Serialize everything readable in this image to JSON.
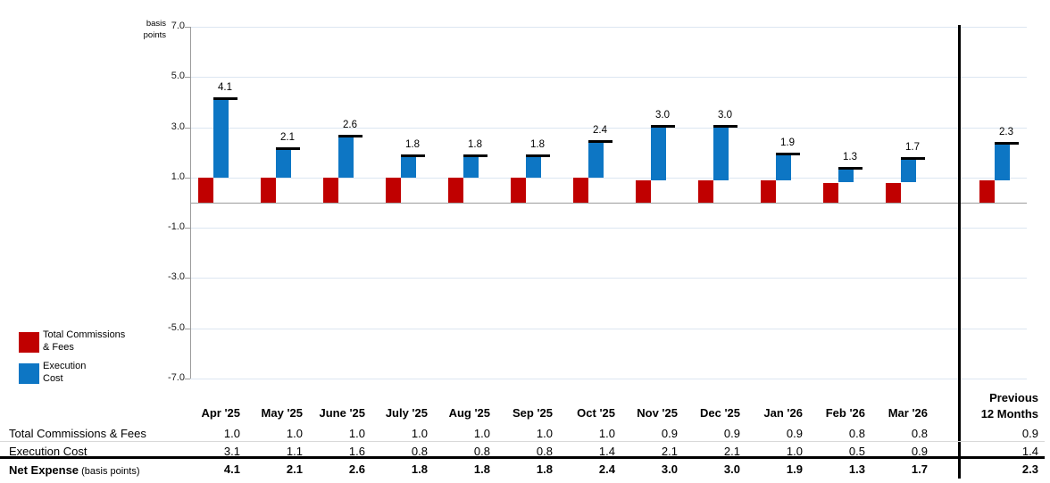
{
  "chart": {
    "axis_title_line1": "basis",
    "axis_title_line2": "points",
    "y_tick_labels": [
      "7.0",
      "5.0",
      "3.0",
      "1.0",
      "-1.0",
      "-3.0",
      "-5.0",
      "-7.0"
    ],
    "y_tick_values": [
      7,
      5,
      3,
      1,
      -1,
      -3,
      -5,
      -7
    ]
  },
  "chart_data": {
    "type": "bar",
    "subtype": "stacked-column-with-total-marker",
    "title": "",
    "ylabel": "basis points",
    "ylim": [
      -7.0,
      7.0
    ],
    "ytick_interval": 2.0,
    "grid": true,
    "legend_position": "bottom-left",
    "categories": [
      "Apr '25",
      "May '25",
      "June '25",
      "July '25",
      "Aug '25",
      "Sep '25",
      "Oct '25",
      "Nov '25",
      "Dec '25",
      "Jan '26",
      "Feb '26",
      "Mar '26",
      "Previous 12 Months"
    ],
    "series": [
      {
        "name": "Total Commissions & Fees",
        "role": "stack-bottom",
        "color": "#C00000",
        "values": [
          1.0,
          1.0,
          1.0,
          1.0,
          1.0,
          1.0,
          1.0,
          0.9,
          0.9,
          0.9,
          0.8,
          0.8,
          0.9
        ]
      },
      {
        "name": "Execution Cost",
        "role": "stack-top",
        "color": "#0D76C4",
        "values": [
          3.1,
          1.1,
          1.6,
          0.8,
          0.8,
          0.8,
          1.4,
          2.1,
          2.1,
          1.0,
          0.5,
          0.9,
          1.4
        ]
      },
      {
        "name": "Net Expense",
        "role": "total-marker",
        "color": "#000000",
        "values": [
          4.1,
          2.1,
          2.6,
          1.8,
          1.8,
          1.8,
          2.4,
          3.0,
          3.0,
          1.9,
          1.3,
          1.7,
          2.3
        ]
      }
    ]
  },
  "legend": {
    "items": [
      {
        "line1": "Total Commissions",
        "line2": "& Fees",
        "color": "#C00000"
      },
      {
        "line1": "Execution",
        "line2": "Cost",
        "color": "#0D76C4"
      }
    ]
  },
  "table": {
    "col_headers": [
      "Apr '25",
      "May '25",
      "June '25",
      "July '25",
      "Aug '25",
      "Sep '25",
      "Oct '25",
      "Nov '25",
      "Dec '25",
      "Jan '26",
      "Feb '26",
      "Mar '26"
    ],
    "last_col_header": {
      "line1": "Previous",
      "line2": "12 Months"
    },
    "rows": [
      {
        "label": "Total Commissions & Fees",
        "bold": false,
        "values": [
          "1.0",
          "1.0",
          "1.0",
          "1.0",
          "1.0",
          "1.0",
          "1.0",
          "0.9",
          "0.9",
          "0.9",
          "0.8",
          "0.8",
          "0.9"
        ]
      },
      {
        "label": "Execution Cost",
        "bold": false,
        "values": [
          "3.1",
          "1.1",
          "1.6",
          "0.8",
          "0.8",
          "0.8",
          "1.4",
          "2.1",
          "2.1",
          "1.0",
          "0.5",
          "0.9",
          "1.4"
        ]
      },
      {
        "label": "Net Expense",
        "label_suffix": " (basis points)",
        "bold": true,
        "values": [
          "4.1",
          "2.1",
          "2.6",
          "1.8",
          "1.8",
          "1.8",
          "2.4",
          "3.0",
          "3.0",
          "1.9",
          "1.3",
          "1.7",
          "2.3"
        ]
      }
    ]
  },
  "colors": {
    "commissions_red": "#C00000",
    "execution_blue": "#0D76C4",
    "net_marker_black": "#000000",
    "gridline": "#dce6f1",
    "axis_gray": "#9c9c9c"
  }
}
